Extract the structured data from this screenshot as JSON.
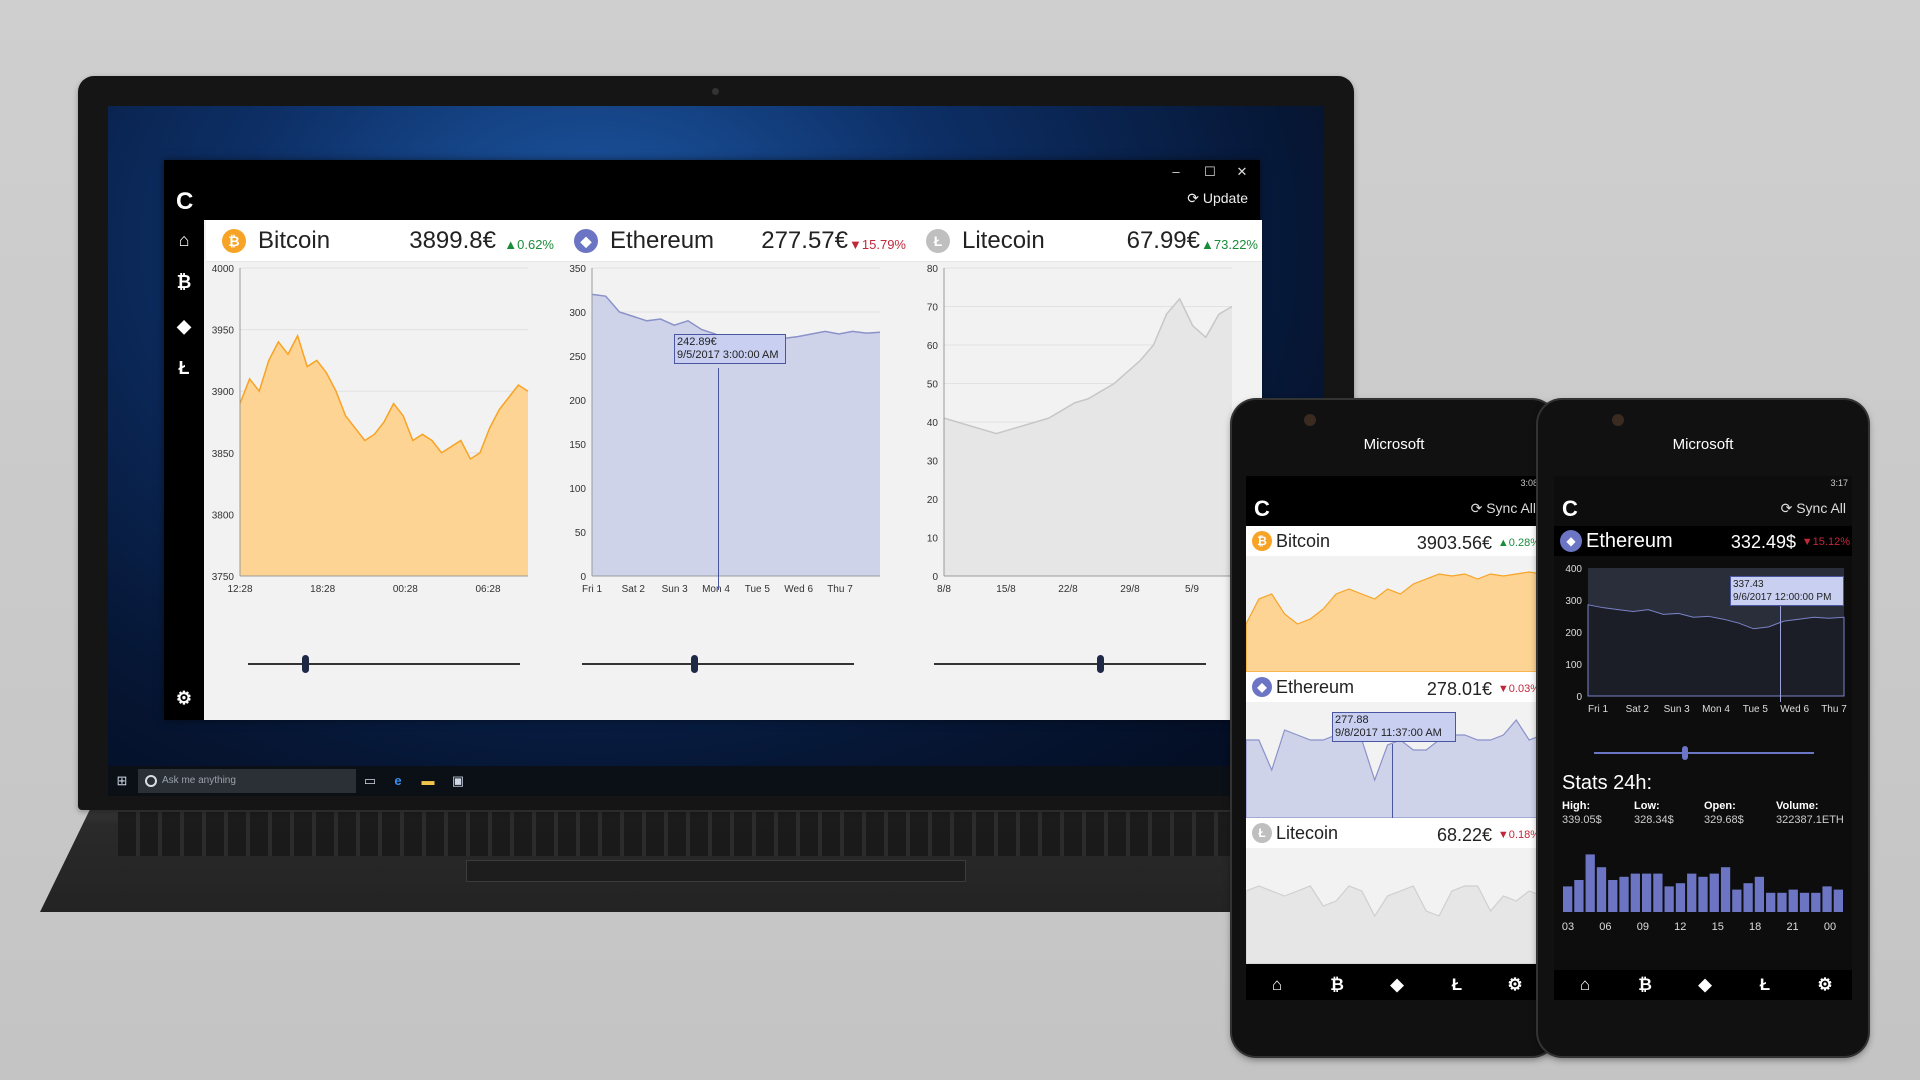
{
  "colors": {
    "bitcoin": "#f7a325",
    "ethereum": "#6b75c4",
    "litecoin": "#bfbfbf",
    "up": "#1a8c3a",
    "down": "#c0283a",
    "btc_fill": "#fdd493",
    "eth_fill": "#cfd3ea",
    "ltc_fill": "#e6e6e6"
  },
  "taskbar": {
    "search_placeholder": "Ask me anything",
    "icons": [
      "windows-icon",
      "task-view-icon",
      "edge-icon",
      "explorer-icon",
      "store-icon"
    ]
  },
  "app": {
    "logo": "C",
    "update_label": "⟳ Update",
    "window_controls": {
      "minimize": "–",
      "maximize": "☐",
      "close": "✕"
    },
    "sidebar": [
      {
        "icon": "home-icon",
        "glyph": "⌂"
      },
      {
        "icon": "bitcoin-icon",
        "glyph": "₿"
      },
      {
        "icon": "ethereum-icon",
        "glyph": "◆"
      },
      {
        "icon": "litecoin-icon",
        "glyph": "Ł"
      }
    ],
    "settings_glyph": "⚙",
    "coins": [
      {
        "name": "Bitcoin",
        "price": "3899.8€",
        "change": "▲0.62%",
        "direction": "up",
        "glyph": "₿"
      },
      {
        "name": "Ethereum",
        "price": "277.57€",
        "change": "▼15.79%",
        "direction": "down",
        "glyph": "◆"
      },
      {
        "name": "Litecoin",
        "price": "67.99€",
        "change": "▲73.22%",
        "direction": "up",
        "glyph": "Ł"
      }
    ]
  },
  "chart_data": [
    {
      "type": "area",
      "series": [
        {
          "values": [
            3890,
            3910,
            3900,
            3925,
            3940,
            3930,
            3945,
            3920,
            3925,
            3915,
            3900,
            3880,
            3870,
            3860,
            3865,
            3875,
            3890,
            3880,
            3860,
            3865,
            3860,
            3850,
            3855,
            3860,
            3845,
            3850,
            3870,
            3885,
            3895,
            3905,
            3900
          ]
        }
      ],
      "x_ticks": [
        "12:28",
        "18:28",
        "00:28",
        "06:28"
      ],
      "y_ticks": [
        "4000",
        "3950",
        "3900",
        "3850",
        "3800",
        "3750"
      ],
      "ylim": [
        3750,
        4000
      ],
      "slider": 0.2
    },
    {
      "type": "area",
      "series": [
        {
          "values": [
            320,
            318,
            300,
            295,
            290,
            292,
            285,
            290,
            280,
            275,
            260,
            245,
            250,
            265,
            270,
            272,
            275,
            278,
            275,
            278,
            276,
            277
          ]
        }
      ],
      "x_ticks": [
        "Fri 1",
        "Sat 2",
        "Sun 3",
        "Mon 4",
        "Tue 5",
        "Wed 6",
        "Thu 7"
      ],
      "y_ticks": [
        "350",
        "300",
        "250",
        "200",
        "150",
        "100",
        "50",
        "0"
      ],
      "ylim": [
        0,
        350
      ],
      "tooltip": {
        "value": "242.89€",
        "date": "9/5/2017 3:00:00 AM"
      },
      "slider": 0.4
    },
    {
      "type": "area",
      "series": [
        {
          "values": [
            41,
            40,
            39,
            38,
            37,
            38,
            39,
            40,
            41,
            43,
            45,
            46,
            48,
            50,
            53,
            56,
            60,
            68,
            72,
            65,
            62,
            68,
            70
          ]
        }
      ],
      "x_ticks": [
        "8/8",
        "15/8",
        "22/8",
        "29/8",
        "5/9"
      ],
      "y_ticks": [
        "80",
        "70",
        "60",
        "50",
        "40",
        "30",
        "20",
        "10",
        "0"
      ],
      "ylim": [
        0,
        80
      ],
      "slider": 0.6
    }
  ],
  "phone1": {
    "brand": "Microsoft",
    "time": "3:08",
    "logo": "C",
    "sync_label": "⟳ Sync All",
    "rows": [
      {
        "name": "Bitcoin",
        "price": "3903.56€",
        "change": "▲0.28%",
        "direction": "up",
        "glyph": "₿"
      },
      {
        "name": "Ethereum",
        "price": "278.01€",
        "change": "▼0.03%",
        "direction": "down",
        "glyph": "◆",
        "tooltip": {
          "value": "277.88",
          "date": "9/8/2017 11:37:00 AM"
        }
      },
      {
        "name": "Litecoin",
        "price": "68.22€",
        "change": "▼0.18%",
        "direction": "down",
        "glyph": "Ł"
      }
    ],
    "nav": [
      "⌂",
      "₿",
      "◆",
      "Ł",
      "⚙"
    ]
  },
  "phone2": {
    "brand": "Microsoft",
    "time": "3:17",
    "logo": "C",
    "sync_label": "⟳ Sync All",
    "coin": {
      "name": "Ethereum",
      "price": "332.49$",
      "change": "▼15.12%",
      "direction": "down",
      "glyph": "◆"
    },
    "chart": {
      "y_ticks": [
        "400",
        "300",
        "200",
        "100",
        "0"
      ],
      "x_ticks": [
        "Fri 1",
        "Sat 2",
        "Sun 3",
        "Mon 4",
        "Tue 5",
        "Wed 6",
        "Thu 7"
      ],
      "tooltip": {
        "value": "337.43",
        "date": "9/6/2017 12:00:00 PM"
      }
    },
    "stats_title": "Stats 24h:",
    "stats": [
      {
        "label": "High:",
        "value": "339.05$"
      },
      {
        "label": "Low:",
        "value": "328.34$"
      },
      {
        "label": "Open:",
        "value": "329.68$"
      },
      {
        "label": "Volume:",
        "value": "322387.1ETH"
      }
    ],
    "bars": [
      0.4,
      0.5,
      0.9,
      0.7,
      0.5,
      0.55,
      0.6,
      0.6,
      0.6,
      0.4,
      0.45,
      0.6,
      0.55,
      0.6,
      0.7,
      0.35,
      0.45,
      0.55,
      0.3,
      0.3,
      0.35,
      0.3,
      0.3,
      0.4,
      0.35
    ],
    "bar_ticks": [
      "03",
      "06",
      "09",
      "12",
      "15",
      "18",
      "21",
      "00"
    ],
    "nav": [
      "⌂",
      "₿",
      "◆",
      "Ł",
      "⚙"
    ]
  }
}
